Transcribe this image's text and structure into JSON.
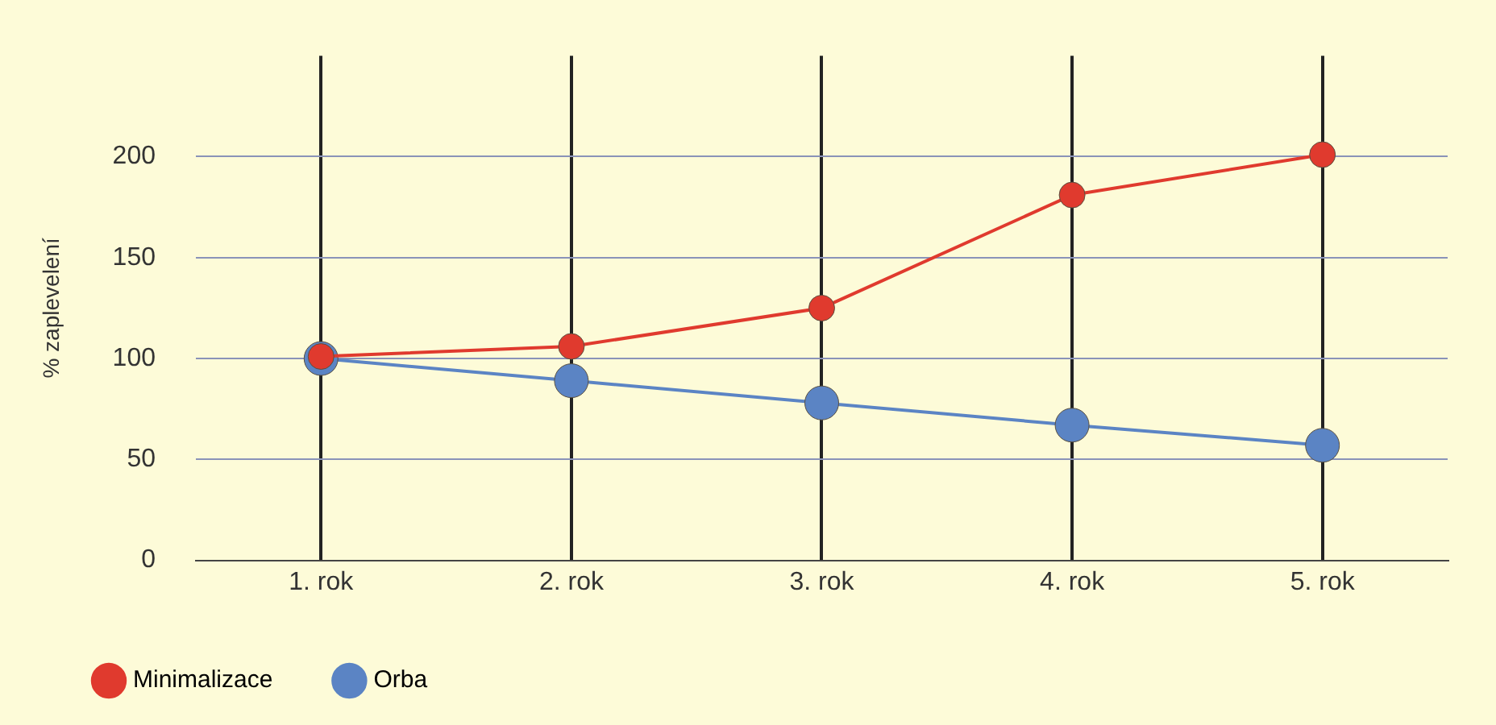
{
  "chart_data": {
    "type": "line",
    "ylabel": "% zaplevelení",
    "categories": [
      "1. rok",
      "2. rok",
      "3. rok",
      "4. rok",
      "5. rok"
    ],
    "series": [
      {
        "name": "Minimalizace",
        "color": "#e03a2e",
        "values": [
          101,
          106,
          125,
          181,
          201
        ]
      },
      {
        "name": "Orba",
        "color": "#5b84c4",
        "values": [
          100,
          89,
          78,
          67,
          57
        ]
      }
    ],
    "ylim": [
      0,
      250
    ],
    "yticks": [
      0,
      50,
      100,
      150,
      200
    ],
    "grid": true,
    "legend": "bottom left",
    "marker": "circle",
    "line_style": "solid"
  }
}
